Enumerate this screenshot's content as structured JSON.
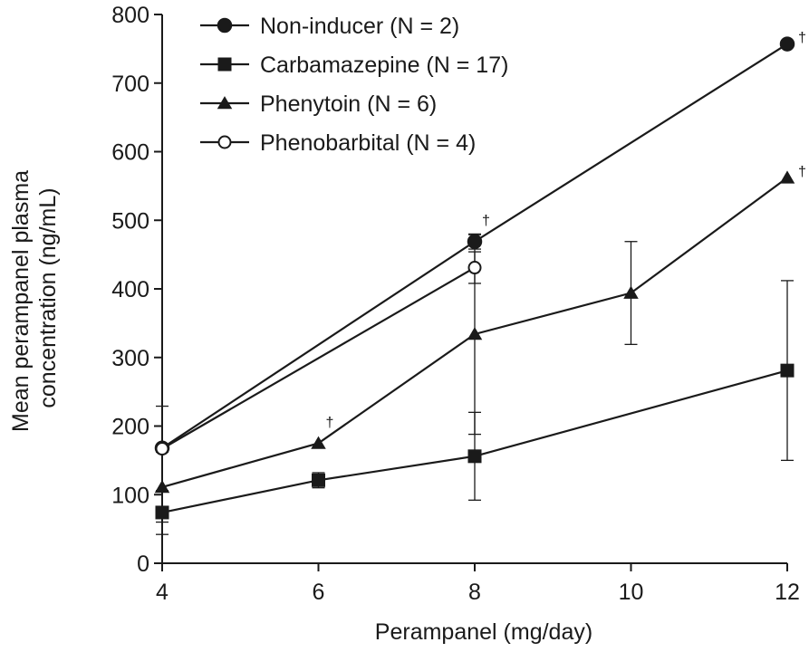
{
  "chart_data": {
    "type": "line",
    "title": "",
    "xlabel": "Perampanel (mg/day)",
    "ylabel_lines": [
      "Mean perampanel plasma",
      "concentration (ng/mL)"
    ],
    "xlim": [
      4,
      12
    ],
    "ylim": [
      0,
      800
    ],
    "xticks": [
      4,
      6,
      8,
      10,
      12
    ],
    "yticks": [
      0,
      100,
      200,
      300,
      400,
      500,
      600,
      700,
      800
    ],
    "grid": false,
    "legend_position": "top-left",
    "series": [
      {
        "name": "Non-inducer (N = 2)",
        "marker": "circle-filled",
        "points": [
          {
            "x": 4,
            "y": 168
          },
          {
            "x": 8,
            "y": 469,
            "err_low": 458,
            "err_high": 479,
            "note": "†"
          },
          {
            "x": 12,
            "y": 757,
            "note": "†"
          }
        ]
      },
      {
        "name": "Carbamazepine (N = 17)",
        "marker": "square-filled",
        "points": [
          {
            "x": 4,
            "y": 74,
            "err_low": 42,
            "err_high": 106
          },
          {
            "x": 6,
            "y": 121,
            "err_low": 110,
            "err_high": 132
          },
          {
            "x": 8,
            "y": 156,
            "err_low": 92,
            "err_high": 220
          },
          {
            "x": 12,
            "y": 281,
            "err_low": 150,
            "err_high": 412
          }
        ]
      },
      {
        "name": "Phenytoin (N = 6)",
        "marker": "triangle-filled",
        "points": [
          {
            "x": 4,
            "y": 111,
            "err_low": 60,
            "err_high": 162
          },
          {
            "x": 6,
            "y": 175,
            "note": "†"
          },
          {
            "x": 8,
            "y": 334,
            "err_low": 188,
            "err_high": 480
          },
          {
            "x": 10,
            "y": 394,
            "err_low": 319,
            "err_high": 469
          },
          {
            "x": 12,
            "y": 562,
            "note": "†"
          }
        ]
      },
      {
        "name": "Phenobarbital (N = 4)",
        "marker": "circle-open",
        "points": [
          {
            "x": 4,
            "y": 167,
            "err_low": 105,
            "err_high": 229
          },
          {
            "x": 8,
            "y": 431,
            "err_low": 408,
            "err_high": 454
          }
        ]
      }
    ]
  }
}
